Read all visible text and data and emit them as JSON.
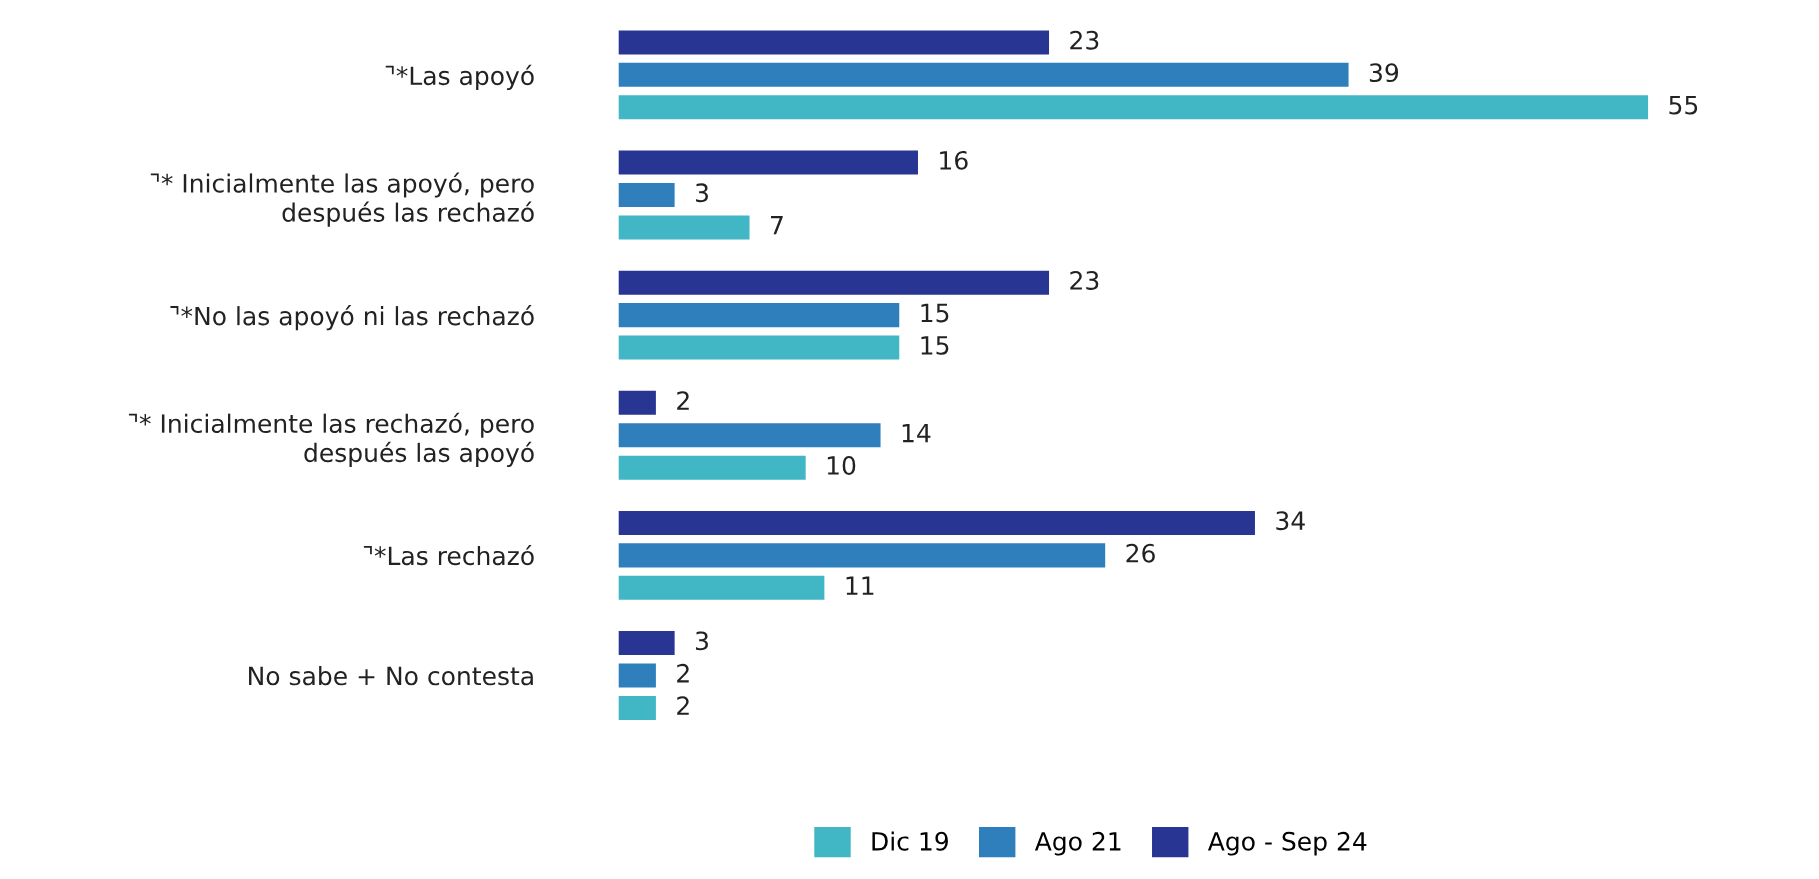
{
  "chart_data": {
    "type": "bar",
    "orientation": "horizontal",
    "categories": [
      "⌝*Las apoyó",
      "⌝* Inicialmente las apoyó, pero\ndespués las rechazó",
      "⌝*No las apoyó ni las rechazó",
      "⌝* Inicialmente las rechazó, pero\ndespués las apoyó",
      "⌝*Las rechazó",
      "No sabe + No contesta"
    ],
    "series": [
      {
        "name": "Dic 19",
        "color": "#41b6c4",
        "values": [
          55,
          7,
          15,
          10,
          11,
          2
        ]
      },
      {
        "name": "Ago 21",
        "color": "#2e7fbc",
        "values": [
          39,
          3,
          15,
          14,
          26,
          2
        ]
      },
      {
        "name": "Ago - Sep 24",
        "color": "#283593",
        "values": [
          23,
          16,
          23,
          2,
          34,
          3
        ]
      }
    ],
    "data_labels": true,
    "legend": "bottom",
    "grid": false,
    "tick_labels": "y"
  }
}
